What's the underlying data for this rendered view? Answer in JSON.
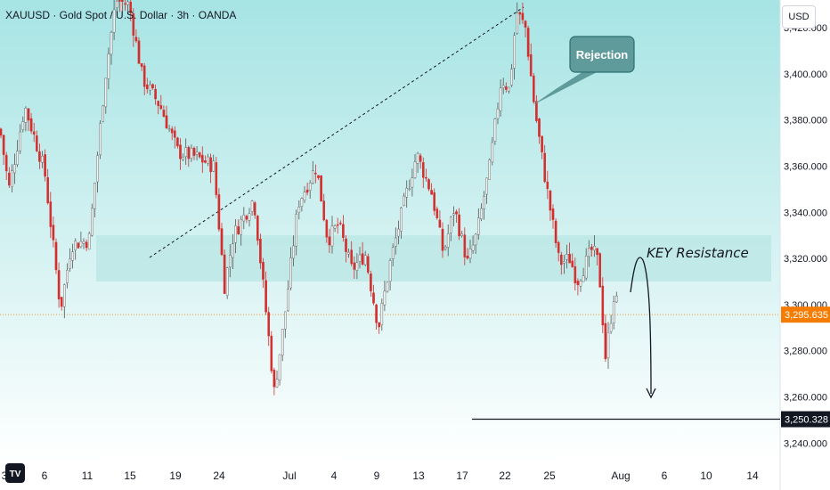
{
  "header": {
    "symbol_line": "XAUUSD · Gold Spot / U.S. Dollar · 3h · OANDA"
  },
  "currency_button": "USD",
  "colors": {
    "up": "#f2f2f2",
    "down": "#d32f2f",
    "zone": "#b8e6e3",
    "price_tag": "#f57c00",
    "target_tag": "#131722",
    "callout": "#5f9b9b"
  },
  "chart_data": {
    "type": "candlestick",
    "title": "XAUUSD · Gold Spot / U.S. Dollar · 3h · OANDA",
    "y_axis": {
      "unit": "USD",
      "ticks": [
        3240,
        3260,
        3280,
        3300,
        3320,
        3340,
        3360,
        3380,
        3400,
        3420
      ],
      "tick_labels": [
        "3,240.000",
        "3,260.000",
        "3,280.000",
        "3,300.000",
        "3,320.000",
        "3,340.000",
        "3,360.000",
        "3,380.000",
        "3,400.000",
        "3,420.000"
      ],
      "range": [
        3232,
        3432
      ]
    },
    "x_axis": {
      "tick_labels": [
        "3",
        "6",
        "11",
        "15",
        "19",
        "24",
        "Jul",
        "4",
        "9",
        "13",
        "17",
        "22",
        "25",
        "Aug",
        "6",
        "10",
        "14"
      ]
    },
    "grid": false,
    "path": [
      [
        0,
        3376
      ],
      [
        10,
        3350
      ],
      [
        28,
        3386
      ],
      [
        50,
        3358
      ],
      [
        68,
        3298
      ],
      [
        80,
        3326
      ],
      [
        100,
        3328
      ],
      [
        118,
        3398
      ],
      [
        130,
        3432
      ],
      [
        145,
        3430
      ],
      [
        160,
        3398
      ],
      [
        180,
        3386
      ],
      [
        200,
        3366
      ],
      [
        220,
        3364
      ],
      [
        240,
        3360
      ],
      [
        252,
        3308
      ],
      [
        262,
        3330
      ],
      [
        285,
        3346
      ],
      [
        300,
        3292
      ],
      [
        308,
        3262
      ],
      [
        318,
        3290
      ],
      [
        335,
        3344
      ],
      [
        355,
        3360
      ],
      [
        368,
        3328
      ],
      [
        380,
        3335
      ],
      [
        395,
        3315
      ],
      [
        410,
        3322
      ],
      [
        425,
        3290
      ],
      [
        438,
        3318
      ],
      [
        455,
        3346
      ],
      [
        468,
        3365
      ],
      [
        485,
        3348
      ],
      [
        498,
        3322
      ],
      [
        510,
        3342
      ],
      [
        525,
        3318
      ],
      [
        535,
        3330
      ],
      [
        550,
        3360
      ],
      [
        563,
        3398
      ],
      [
        572,
        3393
      ],
      [
        580,
        3427
      ],
      [
        590,
        3420
      ],
      [
        600,
        3386
      ],
      [
        612,
        3355
      ],
      [
        628,
        3318
      ],
      [
        640,
        3320
      ],
      [
        648,
        3310
      ],
      [
        665,
        3324
      ],
      [
        672,
        3318
      ],
      [
        680,
        3277
      ],
      [
        690,
        3306
      ],
      [
        696,
        3293
      ]
    ],
    "key_resistance_zone": [
      3310,
      3330
    ],
    "zone_label": "KEY Resistance",
    "callout_label": "Rejection",
    "current_price": 3295.635,
    "current_price_label": "3,295.635",
    "target_price": 3250.328,
    "target_price_label": "3,250.328"
  }
}
